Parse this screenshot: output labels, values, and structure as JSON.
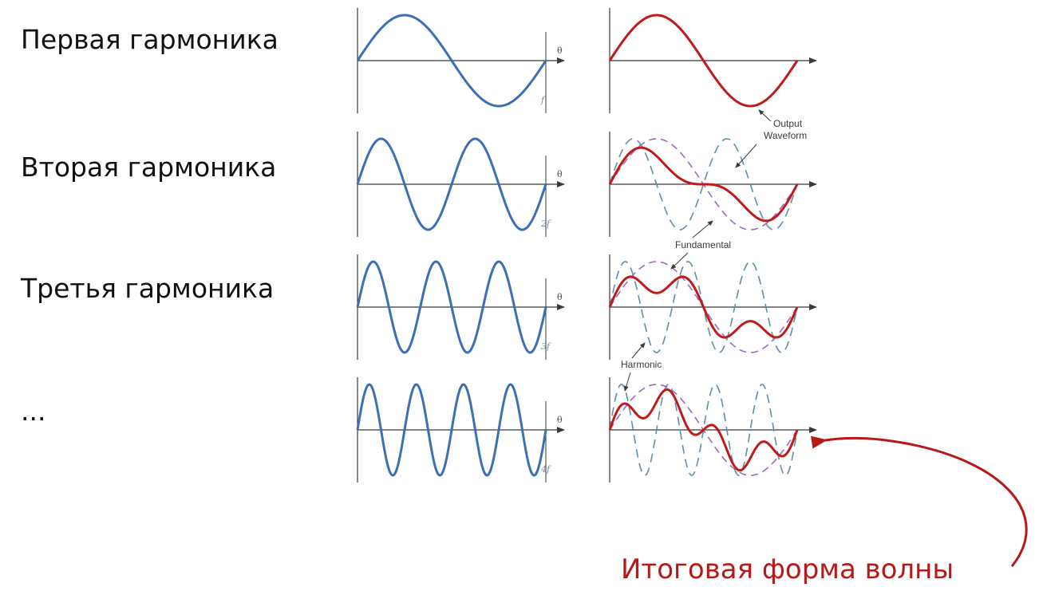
{
  "rows": [
    {
      "label": "Первая гармоника",
      "harmonic": 1,
      "freq_label": "f"
    },
    {
      "label": "Вторая гармоника",
      "harmonic": 2,
      "freq_label": "2f"
    },
    {
      "label": "Третья гармоника",
      "harmonic": 3,
      "freq_label": "3f"
    },
    {
      "label": "...",
      "harmonic": 4,
      "freq_label": "4f"
    }
  ],
  "axis_symbol": "θ",
  "annotations": {
    "output_waveform_line1": "Output",
    "output_waveform_line2": "Waveform",
    "fundamental": "Fundamental",
    "harmonic": "Harmonic"
  },
  "result_caption": "Итоговая форма волны",
  "colors": {
    "harmonic_wave": "#3d6fb4",
    "output_wave": "#c01a1a",
    "fundamental_dashed": "#9b6cc0",
    "harmonic_dashed": "#5f8fa6",
    "axis": "#3a3a3a",
    "caption": "#b81818"
  }
}
